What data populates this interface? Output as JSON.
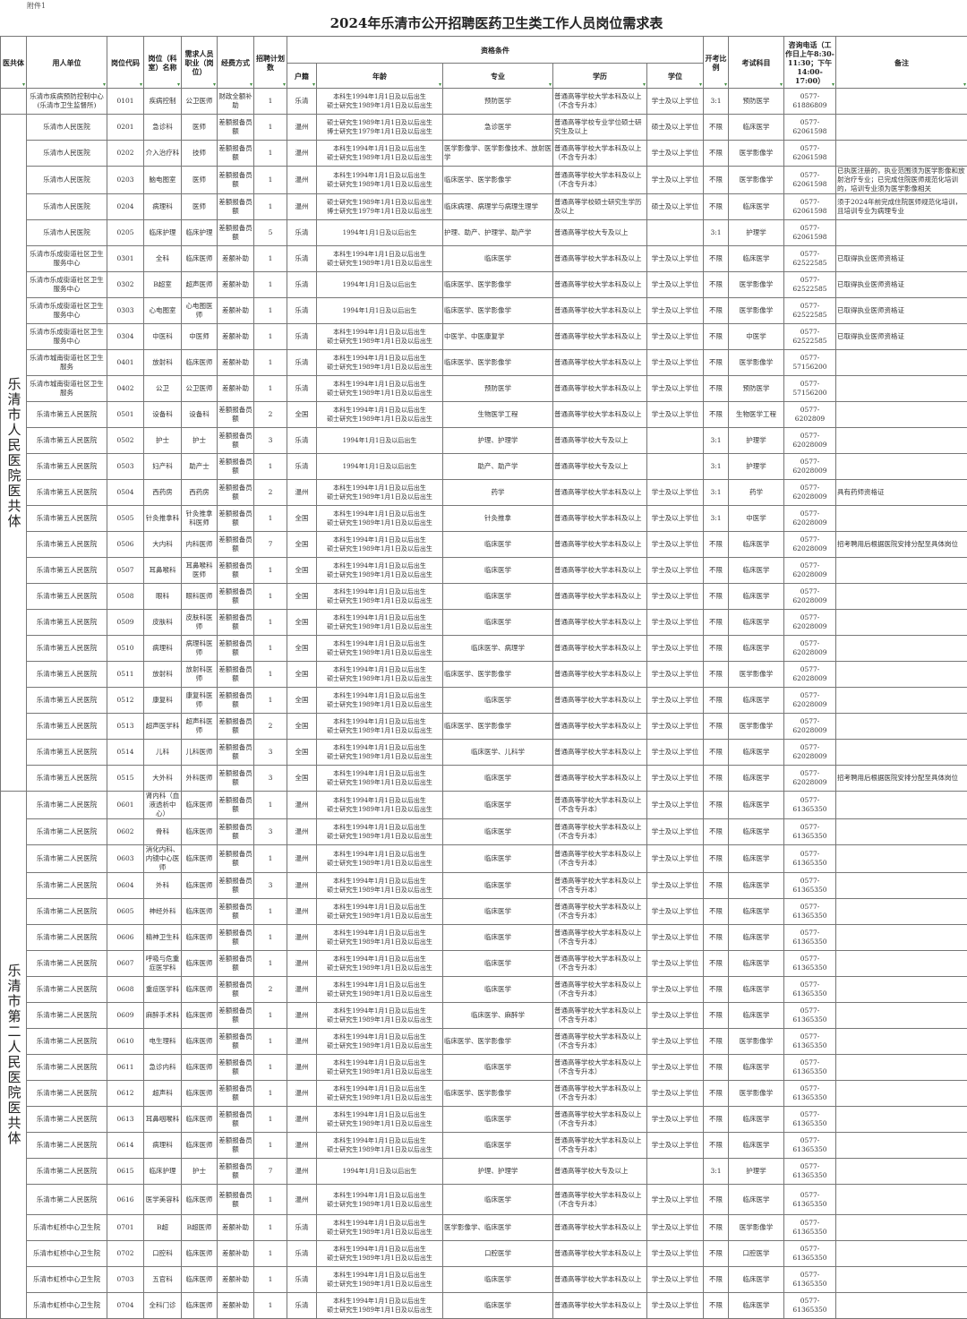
{
  "attachment_label": "附件1",
  "title": "2024年乐清市公开招聘医药卫生类工作人员岗位需求表",
  "headers": {
    "group": "医共体",
    "unit": "用人单位",
    "code": "岗位代码",
    "post": "岗位（科室）名称",
    "occupation": "需求人员职业（岗位）",
    "funding": "经费方式",
    "plan": "招聘计划数",
    "qualifications": "资格条件",
    "huji": "户籍",
    "age": "年龄",
    "major": "专业",
    "education": "学历",
    "degree": "学位",
    "ratio": "开考比例",
    "exam": "考试科目",
    "phone": "咨询电话（工作日上午8:30-11:30；下午14:00-17:00）",
    "remark": "备注",
    "filter_icon": "filter-dropdown-icon"
  },
  "groups": [
    {
      "label": "",
      "rows": 1
    },
    {
      "label": "乐清市人民医院医共体",
      "rows": 26
    },
    {
      "label": "乐清市第二人民医院医共体",
      "rows": 20
    }
  ],
  "rows": [
    [
      "乐清市疾病预防控制中心(乐清市卫生监督所)",
      "0101",
      "疾病控制",
      "公卫医师",
      "财政全额补助",
      "1",
      "乐清",
      "本科生1994年1月1日及以后出生\n硕士研究生1989年1月1日及以后出生",
      "预防医学",
      "普通高等学校大学本科及以上（不含专升本）",
      "学士及以上学位",
      "3:1",
      "预防医学",
      "0577-61886809",
      ""
    ],
    [
      "乐清市人民医院",
      "0201",
      "急诊科",
      "医师",
      "差额报备员额",
      "1",
      "温州",
      "硕士研究生1989年1月1日及以后出生\n博士研究生1979年1月1日及以后出生",
      "急诊医学",
      "普通高等学校专业学位硕士研究生及以上",
      "硕士及以上学位",
      "不限",
      "临床医学",
      "0577-62061598",
      ""
    ],
    [
      "乐清市人民医院",
      "0202",
      "介入治疗科",
      "技师",
      "差额报备员额",
      "1",
      "温州",
      "本科生1994年1月1日及以后出生\n硕士研究生1989年1月1日及以后出生",
      "医学影像学、医学影像技术、放射医学",
      "普通高等学校大学本科及以上（不含专升本）",
      "学士及以上学位",
      "不限",
      "医学影像学",
      "0577-62061598",
      ""
    ],
    [
      "乐清市人民医院",
      "0203",
      "脑电图室",
      "医师",
      "差额报备员额",
      "1",
      "温州",
      "本科生1994年1月1日及以后出生\n硕士研究生1989年1月1日及以后出生",
      "临床医学、医学影像学",
      "普通高等学校大学本科及以上（不含专升本）",
      "学士及以上学位",
      "不限",
      "医学影像学",
      "0577-62061598",
      "已执医注册的，执业范围须为医学影像和放射治疗专业；已完成住院医师规范化培训的，培训专业须为医学影像相关"
    ],
    [
      "乐清市人民医院",
      "0204",
      "病理科",
      "医师",
      "差额报备员额",
      "1",
      "温州",
      "硕士研究生1989年1月1日及以后出生\n博士研究生1979年1月1日及以后出生",
      "临床病理、病理学与病理生理学",
      "普通高等学校硕士研究生学历及以上",
      "硕士及以上学位",
      "不限",
      "临床医学",
      "0577-62061598",
      "须于2024年前完成住院医师规范化培训，且培训专业为病理专业"
    ],
    [
      "乐清市人民医院",
      "0205",
      "临床护理",
      "临床护理",
      "差额报备员额",
      "5",
      "乐清",
      "1994年1月1日及以后出生",
      "护理、助产、护理学、助产学",
      "普通高等学校大专及以上",
      "",
      "3:1",
      "护理学",
      "0577-62061598",
      ""
    ],
    [
      "乐清市乐成街道社区卫生服务中心",
      "0301",
      "全科",
      "临床医师",
      "差额补助",
      "1",
      "乐清",
      "本科生1994年1月1日及以后出生\n硕士研究生1989年1月1日及以后出生",
      "临床医学",
      "普通高等学校大学本科及以上",
      "学士及以上学位",
      "不限",
      "临床医学",
      "0577-62522585",
      "已取得执业医师资格证"
    ],
    [
      "乐清市乐成街道社区卫生服务中心",
      "0302",
      "B超室",
      "超声医师",
      "差额补助",
      "1",
      "乐清",
      "1994年1月1日及以后出生",
      "临床医学、医学影像学",
      "普通高等学校大学本科及以上",
      "学士及以上学位",
      "不限",
      "医学影像学",
      "0577-62522585",
      "已取得执业医师资格证"
    ],
    [
      "乐清市乐成街道社区卫生服务中心",
      "0303",
      "心电图室",
      "心电图医师",
      "差额补助",
      "1",
      "乐清",
      "1994年1月1日及以后出生",
      "临床医学、医学影像学",
      "普通高等学校大学本科及以上",
      "学士及以上学位",
      "不限",
      "医学影像学",
      "0577-62522585",
      "已取得执业医师资格证"
    ],
    [
      "乐清市乐成街道社区卫生服务中心",
      "0304",
      "中医科",
      "中医师",
      "差额补助",
      "1",
      "乐清",
      "本科生1994年1月1日及以后出生\n硕士研究生1989年1月1日及以后出生",
      "中医学、中医康复学",
      "普通高等学校大学本科及以上",
      "学士及以上学位",
      "不限",
      "中医学",
      "0577-62522585",
      "已取得执业医师资格证"
    ],
    [
      "乐清市城南街道社区卫生服务",
      "0401",
      "放射科",
      "临床医师",
      "差额补助",
      "1",
      "乐清",
      "本科生1994年1月1日及以后出生\n硕士研究生1989年1月1日及以后出生",
      "临床医学、医学影像学",
      "普通高等学校大学本科及以上",
      "学士及以上学位",
      "不限",
      "医学影像学",
      "0577-57156200",
      ""
    ],
    [
      "乐清市城南街道社区卫生服务",
      "0402",
      "公卫",
      "公卫医师",
      "差额补助",
      "1",
      "乐清",
      "本科生1994年1月1日及以后出生\n硕士研究生1989年1月1日及以后出生",
      "预防医学",
      "普通高等学校大学本科及以上",
      "学士及以上学位",
      "不限",
      "预防医学",
      "0577-57156200",
      ""
    ],
    [
      "乐清市第五人民医院",
      "0501",
      "设备科",
      "设备科",
      "差额报备员额",
      "2",
      "全国",
      "本科生1994年1月1日及以后出生\n硕士研究生1989年1月1日及以后出生",
      "生物医学工程",
      "普通高等学校大学本科及以上",
      "学士及以上学位",
      "不限",
      "生物医学工程",
      "0577-6202809",
      ""
    ],
    [
      "乐清市第五人民医院",
      "0502",
      "护士",
      "护士",
      "差额报备员额",
      "3",
      "乐清",
      "1994年1月1日及以后出生",
      "护理、护理学",
      "普通高等学校大专及以上",
      "",
      "3:1",
      "护理学",
      "0577-62028009",
      ""
    ],
    [
      "乐清市第五人民医院",
      "0503",
      "妇产科",
      "助产士",
      "差额报备员额",
      "1",
      "乐清",
      "1994年1月1日及以后出生",
      "助产、助产学",
      "普通高等学校大专及以上",
      "",
      "3:1",
      "护理学",
      "0577-62028009",
      ""
    ],
    [
      "乐清市第五人民医院",
      "0504",
      "西药房",
      "西药房",
      "差额报备员额",
      "2",
      "温州",
      "本科生1994年1月1日及以后出生\n硕士研究生1989年1月1日及以后出生",
      "药学",
      "普通高等学校大学本科及以上",
      "学士及以上学位",
      "3:1",
      "药学",
      "0577-62028009",
      "具有药师资格证"
    ],
    [
      "乐清市第五人民医院",
      "0505",
      "针灸推拿科",
      "针灸推拿科医师",
      "差额报备员额",
      "1",
      "全国",
      "本科生1994年1月1日及以后出生\n硕士研究生1989年1月1日及以后出生",
      "针灸推拿",
      "普通高等学校大学本科及以上",
      "学士及以上学位",
      "3:1",
      "中医学",
      "0577-62028009",
      ""
    ],
    [
      "乐清市第五人民医院",
      "0506",
      "大内科",
      "内科医师",
      "差额报备员额",
      "7",
      "全国",
      "本科生1994年1月1日及以后出生\n硕士研究生1989年1月1日及以后出生",
      "临床医学",
      "普通高等学校大学本科及以上",
      "学士及以上学位",
      "不限",
      "临床医学",
      "0577-62028009",
      "招考聘用后根据医院安排分配至具体岗位"
    ],
    [
      "乐清市第五人民医院",
      "0507",
      "耳鼻喉科",
      "耳鼻喉科医师",
      "差额报备员额",
      "1",
      "全国",
      "本科生1994年1月1日及以后出生\n硕士研究生1989年1月1日及以后出生",
      "临床医学",
      "普通高等学校大学本科及以上",
      "学士及以上学位",
      "不限",
      "临床医学",
      "0577-62028009",
      ""
    ],
    [
      "乐清市第五人民医院",
      "0508",
      "眼科",
      "眼科医师",
      "差额报备员额",
      "1",
      "全国",
      "本科生1994年1月1日及以后出生\n硕士研究生1989年1月1日及以后出生",
      "临床医学",
      "普通高等学校大学本科及以上",
      "学士及以上学位",
      "不限",
      "临床医学",
      "0577-62028009",
      ""
    ],
    [
      "乐清市第五人民医院",
      "0509",
      "皮肤科",
      "皮肤科医师",
      "差额报备员额",
      "1",
      "全国",
      "本科生1994年1月1日及以后出生\n硕士研究生1989年1月1日及以后出生",
      "临床医学",
      "普通高等学校大学本科及以上",
      "学士及以上学位",
      "不限",
      "临床医学",
      "0577-62028009",
      ""
    ],
    [
      "乐清市第五人民医院",
      "0510",
      "病理科",
      "病理科医师",
      "差额报备员额",
      "1",
      "全国",
      "本科生1994年1月1日及以后出生\n硕士研究生1989年1月1日及以后出生",
      "临床医学、病理学",
      "普通高等学校大学本科及以上",
      "学士及以上学位",
      "不限",
      "临床医学",
      "0577-62028009",
      ""
    ],
    [
      "乐清市第五人民医院",
      "0511",
      "放射科",
      "放射科医师",
      "差额报备员额",
      "1",
      "全国",
      "本科生1994年1月1日及以后出生\n硕士研究生1989年1月1日及以后出生",
      "临床医学、医学影像学",
      "普通高等学校大学本科及以上",
      "学士及以上学位",
      "不限",
      "医学影像学",
      "0577-62028009",
      ""
    ],
    [
      "乐清市第五人民医院",
      "0512",
      "康复科",
      "康复科医师",
      "差额报备员额",
      "1",
      "全国",
      "本科生1994年1月1日及以后出生\n硕士研究生1989年1月1日及以后出生",
      "临床医学",
      "普通高等学校大学本科及以上",
      "学士及以上学位",
      "不限",
      "临床医学",
      "0577-62028009",
      ""
    ],
    [
      "乐清市第五人民医院",
      "0513",
      "超声医学科",
      "超声科医师",
      "差额报备员额",
      "2",
      "全国",
      "本科生1994年1月1日及以后出生\n硕士研究生1989年1月1日及以后出生",
      "临床医学、医学影像学",
      "普通高等学校大学本科及以上",
      "学士及以上学位",
      "不限",
      "医学影像学",
      "0577-62028009",
      ""
    ],
    [
      "乐清市第五人民医院",
      "0514",
      "儿科",
      "儿科医师",
      "差额报备员额",
      "3",
      "全国",
      "本科生1994年1月1日及以后出生\n硕士研究生1989年1月1日及以后出生",
      "临床医学、儿科学",
      "普通高等学校大学本科及以上",
      "学士及以上学位",
      "不限",
      "临床医学",
      "0577-62028009",
      ""
    ],
    [
      "乐清市第五人民医院",
      "0515",
      "大外科",
      "外科医师",
      "差额报备员额",
      "3",
      "全国",
      "本科生1994年1月1日及以后出生\n硕士研究生1989年1月1日及以后出生",
      "临床医学",
      "普通高等学校大学本科及以上",
      "学士及以上学位",
      "不限",
      "临床医学",
      "0577-62028009",
      "招考聘用后根据医院安排分配至具体岗位"
    ],
    [
      "乐清市第二人民医院",
      "0601",
      "肾内科（血液透析中心）",
      "临床医师",
      "差额报备员额",
      "1",
      "温州",
      "本科生1994年1月1日及以后出生\n硕士研究生1989年1月1日及以后出生",
      "临床医学",
      "普通高等学校大学本科及以上（不含专升本）",
      "学士及以上学位",
      "不限",
      "临床医学",
      "0577-61365350",
      ""
    ],
    [
      "乐清市第二人民医院",
      "0602",
      "骨科",
      "临床医师",
      "差额报备员额",
      "3",
      "温州",
      "本科生1994年1月1日及以后出生\n硕士研究生1989年1月1日及以后出生",
      "临床医学",
      "普通高等学校大学本科及以上（不含专升本）",
      "学士及以上学位",
      "不限",
      "临床医学",
      "0577-61365350",
      ""
    ],
    [
      "乐清市第二人民医院",
      "0603",
      "消化内科、内镜中心医师",
      "临床医师",
      "差额报备员额",
      "1",
      "温州",
      "本科生1994年1月1日及以后出生\n硕士研究生1989年1月1日及以后出生",
      "临床医学",
      "普通高等学校大学本科及以上（不含专升本）",
      "学士及以上学位",
      "不限",
      "临床医学",
      "0577-61365350",
      ""
    ],
    [
      "乐清市第二人民医院",
      "0604",
      "外科",
      "临床医师",
      "差额报备员额",
      "3",
      "温州",
      "本科生1994年1月1日及以后出生\n硕士研究生1989年1月1日及以后出生",
      "临床医学",
      "普通高等学校大学本科及以上（不含专升本）",
      "学士及以上学位",
      "不限",
      "临床医学",
      "0577-61365350",
      ""
    ],
    [
      "乐清市第二人民医院",
      "0605",
      "神经外科",
      "临床医师",
      "差额报备员额",
      "1",
      "温州",
      "本科生1994年1月1日及以后出生\n硕士研究生1989年1月1日及以后出生",
      "临床医学",
      "普通高等学校大学本科及以上（不含专升本）",
      "学士及以上学位",
      "不限",
      "临床医学",
      "0577-61365350",
      ""
    ],
    [
      "乐清市第二人民医院",
      "0606",
      "精神卫生科",
      "临床医师",
      "差额报备员额",
      "1",
      "温州",
      "本科生1994年1月1日及以后出生\n硕士研究生1989年1月1日及以后出生",
      "临床医学",
      "普通高等学校大学本科及以上（不含专升本）",
      "学士及以上学位",
      "不限",
      "临床医学",
      "0577-61365350",
      ""
    ],
    [
      "乐清市第二人民医院",
      "0607",
      "呼吸与危重症医学科",
      "临床医师",
      "差额报备员额",
      "1",
      "温州",
      "本科生1994年1月1日及以后出生\n硕士研究生1989年1月1日及以后出生",
      "临床医学",
      "普通高等学校大学本科及以上（不含专升本）",
      "学士及以上学位",
      "不限",
      "临床医学",
      "0577-61365350",
      ""
    ],
    [
      "乐清市第二人民医院",
      "0608",
      "重症医学科",
      "临床医师",
      "差额报备员额",
      "2",
      "温州",
      "本科生1994年1月1日及以后出生\n硕士研究生1989年1月1日及以后出生",
      "临床医学",
      "普通高等学校大学本科及以上（不含专升本）",
      "学士及以上学位",
      "不限",
      "临床医学",
      "0577-61365350",
      ""
    ],
    [
      "乐清市第二人民医院",
      "0609",
      "麻醉手术科",
      "临床医师",
      "差额报备员额",
      "1",
      "温州",
      "本科生1994年1月1日及以后出生\n硕士研究生1989年1月1日及以后出生",
      "临床医学、麻醉学",
      "普通高等学校大学本科及以上（不含专升本）",
      "学士及以上学位",
      "不限",
      "临床医学",
      "0577-61365350",
      ""
    ],
    [
      "乐清市第二人民医院",
      "0610",
      "电生理科",
      "临床医师",
      "差额报备员额",
      "1",
      "温州",
      "本科生1994年1月1日及以后出生\n硕士研究生1989年1月1日及以后出生",
      "临床医学、医学影像学",
      "普通高等学校大学本科及以上（不含专升本）",
      "学士及以上学位",
      "不限",
      "医学影像学",
      "0577-61365350",
      ""
    ],
    [
      "乐清市第二人民医院",
      "0611",
      "急诊内科",
      "临床医师",
      "差额报备员额",
      "1",
      "温州",
      "本科生1994年1月1日及以后出生\n硕士研究生1989年1月1日及以后出生",
      "临床医学",
      "普通高等学校大学本科及以上（不含专升本）",
      "学士及以上学位",
      "不限",
      "临床医学",
      "0577-61365350",
      ""
    ],
    [
      "乐清市第二人民医院",
      "0612",
      "超声科",
      "临床医师",
      "差额报备员额",
      "1",
      "温州",
      "本科生1994年1月1日及以后出生\n硕士研究生1989年1月1日及以后出生",
      "临床医学、医学影像学",
      "普通高等学校大学本科及以上（不含专升本）",
      "学士及以上学位",
      "不限",
      "医学影像学",
      "0577-61365350",
      ""
    ],
    [
      "乐清市第二人民医院",
      "0613",
      "耳鼻咽喉科",
      "临床医师",
      "差额报备员额",
      "1",
      "温州",
      "本科生1994年1月1日及以后出生\n硕士研究生1989年1月1日及以后出生",
      "临床医学",
      "普通高等学校大学本科及以上（不含专升本）",
      "学士及以上学位",
      "不限",
      "临床医学",
      "0577-61365350",
      ""
    ],
    [
      "乐清市第二人民医院",
      "0614",
      "病理科",
      "临床医师",
      "差额报备员额",
      "1",
      "温州",
      "本科生1994年1月1日及以后出生\n硕士研究生1989年1月1日及以后出生",
      "临床医学",
      "普通高等学校大学本科及以上（不含专升本）",
      "学士及以上学位",
      "不限",
      "临床医学",
      "0577-61365350",
      ""
    ],
    [
      "乐清市第二人民医院",
      "0615",
      "临床护理",
      "护士",
      "差额报备员额",
      "7",
      "温州",
      "1994年1月1日及以后出生",
      "护理、护理学",
      "普通高等学校大专及以上",
      "",
      "3:1",
      "护理学",
      "0577-61365350",
      ""
    ],
    [
      "乐清市第二人民医院",
      "0616",
      "医学美容科",
      "临床医师",
      "差额报备员额",
      "1",
      "温州",
      "本科生1994年1月1日及以后出生\n硕士研究生1989年1月1日及以后出生",
      "临床医学",
      "普通高等学校大学本科及以上（不含专升本）",
      "学士及以上学位",
      "不限",
      "临床医学",
      "0577-61365350",
      ""
    ],
    [
      "乐清市虹桥中心卫生院",
      "0701",
      "B超",
      "B超医师",
      "差额补助",
      "1",
      "乐清",
      "本科生1994年1月1日及以后出生\n硕士研究生1989年1月1日及以后出生",
      "医学影像学、临床医学",
      "普通高等学校大学本科及以上",
      "学士及以上学位",
      "不限",
      "医学影像学",
      "0577-61365350",
      ""
    ],
    [
      "乐清市虹桥中心卫生院",
      "0702",
      "口腔科",
      "临床医师",
      "差额补助",
      "1",
      "乐清",
      "本科生1994年1月1日及以后出生\n硕士研究生1989年1月1日及以后出生",
      "口腔医学",
      "普通高等学校大学本科及以上",
      "学士及以上学位",
      "不限",
      "口腔医学",
      "0577-61365350",
      ""
    ],
    [
      "乐清市虹桥中心卫生院",
      "0703",
      "五官科",
      "临床医师",
      "差额补助",
      "1",
      "乐清",
      "本科生1994年1月1日及以后出生\n硕士研究生1989年1月1日及以后出生",
      "临床医学",
      "普通高等学校大学本科及以上",
      "学士及以上学位",
      "不限",
      "临床医学",
      "0577-61365350",
      ""
    ],
    [
      "乐清市虹桥中心卫生院",
      "0704",
      "全科门诊",
      "临床医师",
      "差额补助",
      "1",
      "乐清",
      "本科生1994年1月1日及以后出生\n硕士研究生1989年1月1日及以后出生",
      "临床医学",
      "普通高等学校大学本科及以上",
      "学士及以上学位",
      "不限",
      "临床医学",
      "0577-61365350",
      ""
    ]
  ]
}
